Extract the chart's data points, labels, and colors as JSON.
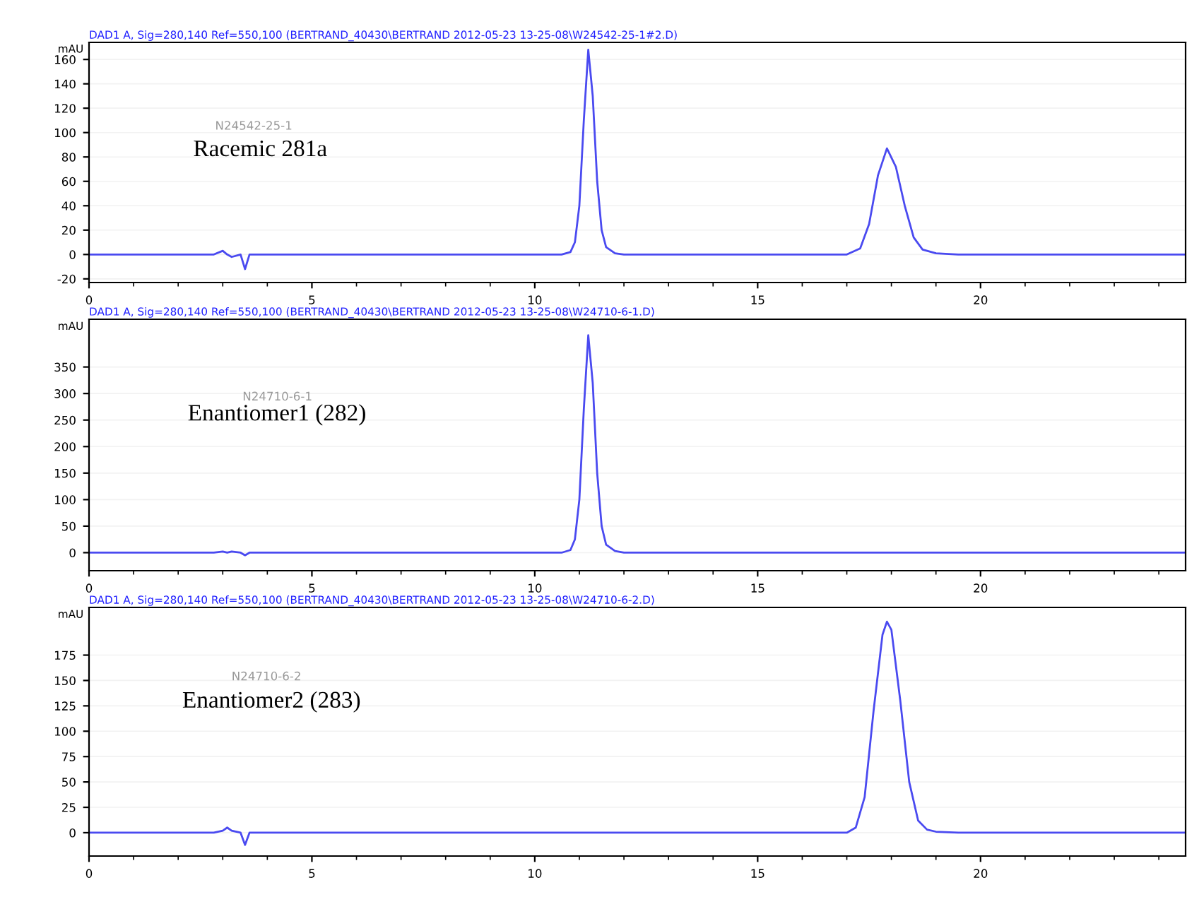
{
  "chart_data": [
    {
      "type": "line",
      "title": "DAD1 A, Sig=280,140 Ref=550,100 (BERTRAND_40430\\BERTRAND 2012-05-23 13-25-08\\W24542-25-1#2.D)",
      "ylabel": "mAU",
      "annotations": [
        "Racemic 281a",
        "N24542-25-1"
      ],
      "series": [
        {
          "color": "#4a4af0",
          "x": [
            0,
            2.8,
            3.0,
            3.1,
            3.2,
            3.4,
            3.5,
            3.6,
            3.8,
            6,
            9,
            10.6,
            10.8,
            10.9,
            11.0,
            11.1,
            11.2,
            11.3,
            11.4,
            11.5,
            11.6,
            11.8,
            12.0,
            14,
            17.0,
            17.3,
            17.5,
            17.7,
            17.9,
            18.1,
            18.3,
            18.5,
            18.7,
            19.0,
            19.5,
            22,
            24.6
          ],
          "values": [
            0,
            0,
            3,
            0,
            -2,
            0,
            -12,
            0,
            0,
            0,
            0,
            0,
            2,
            10,
            40,
            110,
            168,
            130,
            60,
            20,
            6,
            1,
            0,
            0,
            0,
            5,
            25,
            65,
            87,
            72,
            40,
            14,
            4,
            1,
            0,
            0,
            0
          ]
        }
      ],
      "xlim": [
        0,
        24.6
      ],
      "xticks": [
        0,
        5,
        10,
        15,
        20
      ],
      "ylim": [
        -23,
        174
      ],
      "yticks": [
        -20,
        0,
        20,
        40,
        60,
        80,
        100,
        120,
        140,
        160
      ],
      "grid": "y",
      "marker": "none",
      "line_style": "solid"
    },
    {
      "type": "line",
      "title": "DAD1 A, Sig=280,140 Ref=550,100 (BERTRAND_40430\\BERTRAND 2012-05-23 13-25-08\\W24710-6-1.D)",
      "ylabel": "mAU",
      "annotations": [
        "Enantiomer1 (282)",
        "N24710-6-1"
      ],
      "series": [
        {
          "color": "#4a4af0",
          "x": [
            0,
            2.8,
            3.0,
            3.1,
            3.2,
            3.4,
            3.5,
            3.6,
            3.8,
            6,
            9,
            10.6,
            10.8,
            10.9,
            11.0,
            11.1,
            11.2,
            11.3,
            11.4,
            11.5,
            11.6,
            11.8,
            12.0,
            16,
            20,
            24.6
          ],
          "values": [
            0,
            0,
            2,
            0,
            2,
            0,
            -5,
            0,
            0,
            0,
            0,
            0,
            5,
            25,
            100,
            270,
            410,
            320,
            150,
            50,
            15,
            3,
            0,
            0,
            0,
            0
          ]
        }
      ],
      "xlim": [
        0,
        24.6
      ],
      "xticks": [
        0,
        5,
        10,
        15,
        20
      ],
      "ylim": [
        -34,
        440
      ],
      "yticks": [
        0,
        50,
        100,
        150,
        200,
        250,
        300,
        350
      ],
      "grid": "y",
      "marker": "none",
      "line_style": "solid"
    },
    {
      "type": "line",
      "title": "DAD1 A, Sig=280,140 Ref=550,100 (BERTRAND_40430\\BERTRAND 2012-05-23 13-25-08\\W24710-6-2.D)",
      "ylabel": "mAU",
      "annotations": [
        "Enantiomer2 (283)",
        "N24710-6-2"
      ],
      "series": [
        {
          "color": "#4a4af0",
          "x": [
            0,
            2.8,
            3.0,
            3.1,
            3.2,
            3.4,
            3.5,
            3.6,
            3.8,
            6,
            10,
            14,
            17.0,
            17.2,
            17.4,
            17.6,
            17.8,
            17.9,
            18.0,
            18.2,
            18.4,
            18.6,
            18.8,
            19.0,
            19.5,
            22,
            24.6
          ],
          "values": [
            0,
            0,
            2,
            5,
            2,
            0,
            -12,
            0,
            0,
            0,
            0,
            0,
            0,
            5,
            35,
            120,
            195,
            208,
            200,
            130,
            50,
            12,
            3,
            1,
            0,
            0,
            0
          ]
        }
      ],
      "xlim": [
        0,
        24.6
      ],
      "xticks": [
        0,
        5,
        10,
        15,
        20
      ],
      "ylim": [
        -23,
        222
      ],
      "yticks": [
        0,
        25,
        50,
        75,
        100,
        125,
        150,
        175
      ],
      "grid": "y",
      "marker": "none",
      "line_style": "solid"
    }
  ]
}
